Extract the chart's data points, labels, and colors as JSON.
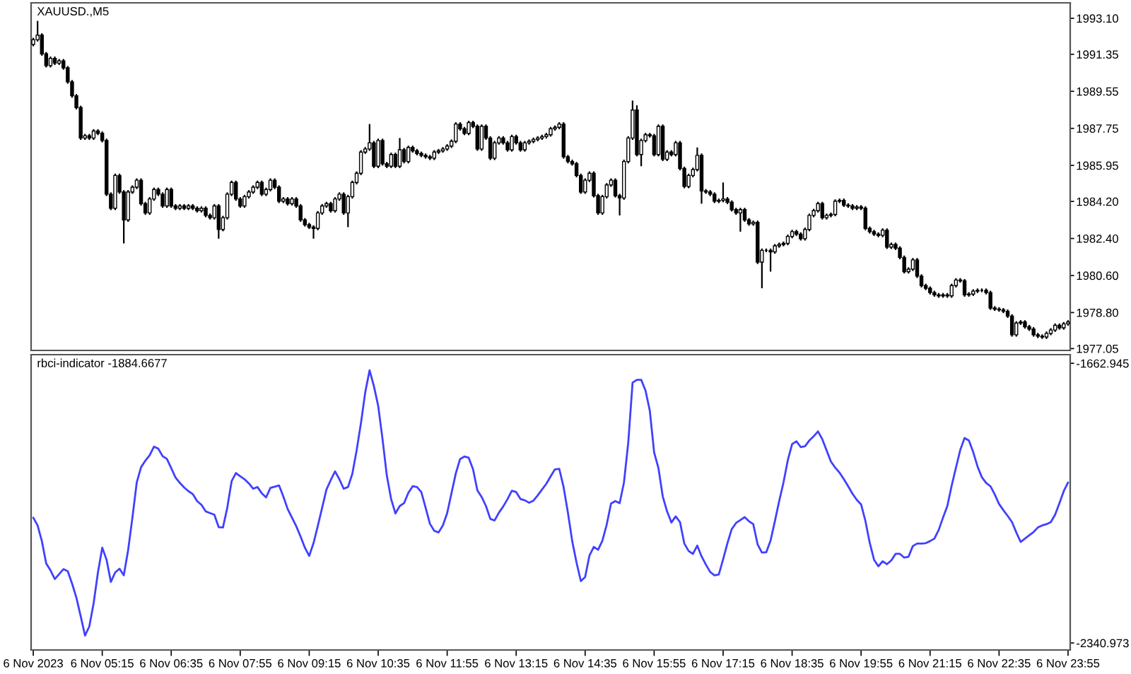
{
  "chart_data": [
    {
      "type": "candlestick",
      "title": "XAUUSD.,M5",
      "categories": [
        null,
        null,
        null,
        null,
        null,
        null,
        null,
        null,
        null,
        null,
        null,
        null,
        null,
        null,
        null,
        null,
        null,
        null,
        null,
        null,
        null,
        null,
        null,
        null,
        null,
        null,
        null,
        null,
        null,
        null,
        null,
        null,
        null,
        null,
        null,
        null,
        null,
        null,
        null,
        null,
        null,
        null,
        null,
        null,
        null,
        null,
        null,
        null,
        null,
        null,
        null,
        null,
        null,
        null,
        null,
        null,
        null,
        null,
        null,
        null,
        null,
        null,
        null,
        null,
        null,
        null,
        null,
        null,
        null,
        null,
        null,
        null,
        null,
        null,
        null,
        null,
        null,
        null,
        null,
        null,
        null,
        null,
        null,
        null,
        null,
        null,
        null,
        null,
        null,
        null,
        null,
        null,
        null,
        null,
        null,
        null,
        null,
        null,
        null,
        null,
        null,
        null,
        null,
        null,
        null,
        null,
        null,
        null,
        null,
        null,
        null,
        null,
        null,
        null,
        null,
        null,
        null,
        null,
        null,
        null,
        null,
        null,
        null,
        null,
        null,
        null,
        null,
        null,
        null,
        null,
        null,
        null,
        null,
        null,
        null,
        null,
        null,
        null,
        null,
        null,
        null,
        null,
        null,
        null,
        null,
        null,
        null,
        null,
        null,
        null,
        null,
        null,
        null,
        null,
        null,
        null,
        null,
        null,
        null,
        null,
        null,
        null,
        null,
        null,
        null,
        null,
        null,
        null,
        null,
        null,
        null,
        null,
        null,
        null,
        null,
        null,
        null,
        null,
        null,
        null,
        null,
        null,
        null,
        null,
        null,
        null,
        null,
        null,
        null,
        null,
        null,
        null,
        null,
        null,
        null,
        null,
        null,
        null,
        null,
        null,
        null,
        null,
        null,
        null,
        null,
        null,
        null,
        null,
        null,
        null,
        null,
        null,
        null,
        null,
        null,
        null,
        null,
        null,
        null,
        null,
        null,
        null,
        null,
        null,
        null,
        null,
        null,
        null,
        null,
        null,
        null,
        null,
        null,
        null,
        null,
        null,
        null,
        null,
        null,
        null,
        null
      ],
      "ohlc": [
        [
          1991.83,
          1992.15,
          1991.74,
          1992.06
        ],
        [
          1992.06,
          1992.97,
          1991.97,
          1992.28
        ],
        [
          1992.28,
          1992.37,
          1991.28,
          1991.37
        ],
        [
          1991.37,
          1991.46,
          1990.71,
          1990.8
        ],
        [
          1990.8,
          1991.24,
          1990.71,
          1991.15
        ],
        [
          1991.15,
          1991.24,
          1990.83,
          1990.92
        ],
        [
          1990.92,
          1991.12,
          1990.83,
          1991.03
        ],
        [
          1991.03,
          1991.12,
          1990.6,
          1990.69
        ],
        [
          1990.69,
          1990.78,
          1989.92,
          1990.01
        ],
        [
          1990.01,
          1990.1,
          1989.24,
          1989.33
        ],
        [
          1989.33,
          1989.42,
          1988.67,
          1988.76
        ],
        [
          1988.76,
          1988.85,
          1987.19,
          1987.28
        ],
        [
          1987.28,
          1987.48,
          1987.19,
          1987.39
        ],
        [
          1987.39,
          1987.48,
          1987.19,
          1987.28
        ],
        [
          1987.28,
          1987.71,
          1987.19,
          1987.62
        ],
        [
          1987.62,
          1987.71,
          1987.42,
          1987.51
        ],
        [
          1987.51,
          1987.6,
          1987.07,
          1987.16
        ],
        [
          1987.16,
          1987.25,
          1984.46,
          1984.55
        ],
        [
          1984.55,
          1984.64,
          1983.78,
          1983.87
        ],
        [
          1983.87,
          1985.55,
          1983.78,
          1985.46
        ],
        [
          1985.46,
          1985.55,
          1984.57,
          1984.66
        ],
        [
          1984.66,
          1984.75,
          1982.16,
          1983.3
        ],
        [
          1983.3,
          1984.75,
          1983.21,
          1984.66
        ],
        [
          1984.66,
          1984.98,
          1984.57,
          1984.89
        ],
        [
          1984.89,
          1985.32,
          1984.8,
          1985.23
        ],
        [
          1985.23,
          1985.32,
          1984.0,
          1984.09
        ],
        [
          1984.09,
          1984.18,
          1983.55,
          1983.64
        ],
        [
          1983.64,
          1984.41,
          1983.55,
          1984.32
        ],
        [
          1984.32,
          1984.87,
          1984.23,
          1984.78
        ],
        [
          1984.78,
          1984.87,
          1984.46,
          1984.55
        ],
        [
          1984.55,
          1984.64,
          1983.89,
          1983.98
        ],
        [
          1983.98,
          1984.87,
          1983.89,
          1984.78
        ],
        [
          1984.78,
          1984.87,
          1983.89,
          1983.98
        ],
        [
          1983.98,
          1984.07,
          1983.78,
          1983.87
        ],
        [
          1983.87,
          1984.07,
          1983.78,
          1983.98
        ],
        [
          1983.98,
          1984.07,
          1983.78,
          1983.87
        ],
        [
          1983.87,
          1984.07,
          1983.78,
          1983.98
        ],
        [
          1983.98,
          1984.07,
          1983.78,
          1983.87
        ],
        [
          1983.87,
          1983.96,
          1983.66,
          1983.75
        ],
        [
          1983.75,
          1983.96,
          1983.66,
          1983.87
        ],
        [
          1983.87,
          1983.96,
          1983.43,
          1983.52
        ],
        [
          1983.52,
          1983.61,
          1983.32,
          1983.41
        ],
        [
          1983.41,
          1984.07,
          1983.32,
          1983.98
        ],
        [
          1983.98,
          1984.07,
          1982.39,
          1982.84
        ],
        [
          1982.84,
          1983.5,
          1982.75,
          1983.41
        ],
        [
          1983.41,
          1984.64,
          1983.32,
          1984.55
        ],
        [
          1984.55,
          1985.21,
          1984.46,
          1985.12
        ],
        [
          1985.12,
          1985.21,
          1984.23,
          1984.32
        ],
        [
          1984.32,
          1984.41,
          1983.89,
          1983.98
        ],
        [
          1983.98,
          1984.52,
          1983.89,
          1984.43
        ],
        [
          1984.43,
          1984.75,
          1984.34,
          1984.66
        ],
        [
          1984.66,
          1984.98,
          1984.57,
          1984.89
        ],
        [
          1984.89,
          1985.21,
          1984.8,
          1985.12
        ],
        [
          1985.12,
          1985.21,
          1984.46,
          1984.55
        ],
        [
          1984.55,
          1984.87,
          1984.46,
          1984.78
        ],
        [
          1984.78,
          1985.32,
          1984.69,
          1985.23
        ],
        [
          1985.23,
          1985.32,
          1984.8,
          1984.89
        ],
        [
          1984.89,
          1984.98,
          1984.12,
          1984.21
        ],
        [
          1984.21,
          1984.41,
          1984.12,
          1984.32
        ],
        [
          1984.32,
          1984.41,
          1984.0,
          1984.09
        ],
        [
          1984.09,
          1984.41,
          1984.0,
          1984.32
        ],
        [
          1984.32,
          1984.41,
          1983.89,
          1983.98
        ],
        [
          1983.98,
          1984.07,
          1983.21,
          1983.3
        ],
        [
          1983.3,
          1983.39,
          1982.98,
          1983.07
        ],
        [
          1983.07,
          1983.16,
          1982.86,
          1982.95
        ],
        [
          1982.95,
          1983.04,
          1982.39,
          1982.89
        ],
        [
          1982.89,
          1983.73,
          1982.8,
          1983.64
        ],
        [
          1983.64,
          1984.07,
          1983.55,
          1983.98
        ],
        [
          1983.98,
          1984.18,
          1983.89,
          1984.09
        ],
        [
          1984.09,
          1984.18,
          1983.66,
          1983.75
        ],
        [
          1983.75,
          1984.41,
          1983.66,
          1984.32
        ],
        [
          1984.32,
          1984.64,
          1984.23,
          1984.55
        ],
        [
          1984.55,
          1984.64,
          1983.55,
          1983.64
        ],
        [
          1983.64,
          1984.52,
          1982.95,
          1984.43
        ],
        [
          1984.43,
          1985.21,
          1984.34,
          1985.12
        ],
        [
          1985.12,
          1985.66,
          1985.03,
          1985.57
        ],
        [
          1985.57,
          1986.69,
          1985.48,
          1986.6
        ],
        [
          1986.6,
          1986.84,
          1986.51,
          1986.75
        ],
        [
          1986.75,
          1987.96,
          1986.66,
          1987.05
        ],
        [
          1987.05,
          1987.14,
          1985.82,
          1985.91
        ],
        [
          1985.91,
          1987.25,
          1985.82,
          1987.16
        ],
        [
          1987.16,
          1987.25,
          1985.94,
          1986.03
        ],
        [
          1986.03,
          1986.12,
          1985.82,
          1985.91
        ],
        [
          1985.91,
          1986.57,
          1985.82,
          1986.48
        ],
        [
          1986.48,
          1986.57,
          1985.82,
          1985.91
        ],
        [
          1985.91,
          1987.28,
          1985.82,
          1986.71
        ],
        [
          1986.71,
          1986.8,
          1986.05,
          1986.14
        ],
        [
          1986.14,
          1986.91,
          1986.05,
          1986.82
        ],
        [
          1986.82,
          1986.91,
          1986.57,
          1986.66
        ],
        [
          1986.66,
          1986.75,
          1986.44,
          1986.53
        ],
        [
          1986.53,
          1986.62,
          1986.35,
          1986.44
        ],
        [
          1986.44,
          1986.53,
          1986.28,
          1986.37
        ],
        [
          1986.37,
          1986.46,
          1986.21,
          1986.3
        ],
        [
          1986.3,
          1986.69,
          1986.21,
          1986.6
        ],
        [
          1986.6,
          1986.75,
          1986.51,
          1986.66
        ],
        [
          1986.66,
          1986.84,
          1986.57,
          1986.75
        ],
        [
          1986.75,
          1986.98,
          1986.66,
          1986.89
        ],
        [
          1986.89,
          1987.21,
          1986.8,
          1987.12
        ],
        [
          1987.12,
          1988.05,
          1987.03,
          1987.96
        ],
        [
          1987.96,
          1988.05,
          1987.64,
          1987.73
        ],
        [
          1987.73,
          1987.82,
          1987.42,
          1987.51
        ],
        [
          1987.51,
          1988.12,
          1987.42,
          1988.03
        ],
        [
          1988.03,
          1988.12,
          1987.76,
          1987.85
        ],
        [
          1987.85,
          1987.94,
          1986.66,
          1986.75
        ],
        [
          1986.75,
          1987.94,
          1986.66,
          1987.85
        ],
        [
          1987.85,
          1987.94,
          1987.19,
          1987.28
        ],
        [
          1987.28,
          1987.37,
          1986.21,
          1986.3
        ],
        [
          1986.3,
          1987.14,
          1986.21,
          1987.05
        ],
        [
          1987.05,
          1987.37,
          1986.96,
          1987.28
        ],
        [
          1987.28,
          1987.37,
          1986.96,
          1987.05
        ],
        [
          1987.05,
          1987.14,
          1986.62,
          1986.71
        ],
        [
          1986.71,
          1987.44,
          1986.62,
          1987.35
        ],
        [
          1987.35,
          1987.44,
          1986.96,
          1987.05
        ],
        [
          1987.05,
          1987.14,
          1986.62,
          1986.71
        ],
        [
          1986.71,
          1987.14,
          1986.62,
          1987.05
        ],
        [
          1987.05,
          1987.21,
          1986.96,
          1987.12
        ],
        [
          1987.12,
          1987.3,
          1987.03,
          1987.21
        ],
        [
          1987.21,
          1987.37,
          1987.12,
          1987.28
        ],
        [
          1987.28,
          1987.44,
          1987.19,
          1987.35
        ],
        [
          1987.35,
          1987.53,
          1987.26,
          1987.44
        ],
        [
          1987.44,
          1987.82,
          1987.35,
          1987.73
        ],
        [
          1987.73,
          1987.89,
          1987.64,
          1987.8
        ],
        [
          1987.8,
          1988.05,
          1987.71,
          1987.96
        ],
        [
          1987.96,
          1988.05,
          1986.28,
          1986.37
        ],
        [
          1986.37,
          1986.46,
          1986.05,
          1986.14
        ],
        [
          1986.14,
          1986.23,
          1985.94,
          1986.03
        ],
        [
          1986.03,
          1986.12,
          1985.37,
          1985.46
        ],
        [
          1985.46,
          1985.55,
          1984.57,
          1984.66
        ],
        [
          1984.66,
          1985.32,
          1984.57,
          1985.23
        ],
        [
          1985.23,
          1985.66,
          1985.14,
          1985.57
        ],
        [
          1985.57,
          1985.66,
          1984.39,
          1984.48
        ],
        [
          1984.48,
          1984.57,
          1983.55,
          1983.64
        ],
        [
          1983.64,
          1984.52,
          1983.55,
          1984.43
        ],
        [
          1984.43,
          1985.09,
          1984.34,
          1985.0
        ],
        [
          1985.0,
          1985.32,
          1984.91,
          1985.23
        ],
        [
          1985.23,
          1985.32,
          1984.39,
          1984.48
        ],
        [
          1984.48,
          1984.57,
          1983.52,
          1984.37
        ],
        [
          1984.37,
          1986.23,
          1984.28,
          1986.14
        ],
        [
          1986.14,
          1987.37,
          1986.05,
          1987.28
        ],
        [
          1987.28,
          1989.1,
          1987.19,
          1988.64
        ],
        [
          1988.64,
          1988.87,
          1986.39,
          1986.48
        ],
        [
          1986.48,
          1987.25,
          1985.91,
          1987.16
        ],
        [
          1987.16,
          1987.53,
          1987.07,
          1987.44
        ],
        [
          1987.44,
          1987.53,
          1987.3,
          1987.39
        ],
        [
          1987.39,
          1987.48,
          1986.39,
          1986.48
        ],
        [
          1986.48,
          1987.94,
          1986.39,
          1987.85
        ],
        [
          1987.85,
          1987.94,
          1986.16,
          1986.25
        ],
        [
          1986.25,
          1986.69,
          1986.16,
          1986.6
        ],
        [
          1986.6,
          1986.69,
          1986.39,
          1986.48
        ],
        [
          1986.48,
          1987.14,
          1986.39,
          1987.05
        ],
        [
          1987.05,
          1987.14,
          1985.71,
          1985.8
        ],
        [
          1985.8,
          1985.89,
          1984.84,
          1984.93
        ],
        [
          1984.93,
          1985.55,
          1984.84,
          1985.46
        ],
        [
          1985.46,
          1985.84,
          1985.37,
          1985.75
        ],
        [
          1985.75,
          1986.82,
          1985.66,
          1986.44
        ],
        [
          1986.44,
          1986.53,
          1984.09,
          1984.71
        ],
        [
          1984.71,
          1984.8,
          1984.57,
          1984.66
        ],
        [
          1984.66,
          1984.75,
          1984.46,
          1984.55
        ],
        [
          1984.55,
          1984.64,
          1984.12,
          1984.21
        ],
        [
          1984.21,
          1984.34,
          1984.12,
          1984.25
        ],
        [
          1984.25,
          1985.12,
          1984.16,
          1984.32
        ],
        [
          1984.32,
          1984.41,
          1984.07,
          1984.16
        ],
        [
          1984.16,
          1984.25,
          1983.71,
          1983.8
        ],
        [
          1983.8,
          1983.89,
          1983.55,
          1983.64
        ],
        [
          1983.64,
          1983.89,
          1982.73,
          1983.8
        ],
        [
          1983.8,
          1983.89,
          1983.21,
          1983.3
        ],
        [
          1983.3,
          1983.39,
          1983.02,
          1983.11
        ],
        [
          1983.11,
          1983.27,
          1983.02,
          1983.18
        ],
        [
          1983.18,
          1983.27,
          1981.16,
          1981.25
        ],
        [
          1981.25,
          1981.91,
          1979.98,
          1981.82
        ],
        [
          1981.82,
          1981.91,
          1981.73,
          1981.82
        ],
        [
          1981.82,
          1981.91,
          1980.79,
          1981.75
        ],
        [
          1981.75,
          1982.13,
          1981.66,
          1982.04
        ],
        [
          1982.04,
          1982.2,
          1981.95,
          1982.11
        ],
        [
          1982.11,
          1982.25,
          1982.02,
          1982.16
        ],
        [
          1982.16,
          1982.59,
          1982.07,
          1982.5
        ],
        [
          1982.5,
          1982.82,
          1982.41,
          1982.73
        ],
        [
          1982.73,
          1982.82,
          1982.52,
          1982.61
        ],
        [
          1982.61,
          1982.7,
          1982.3,
          1982.39
        ],
        [
          1982.39,
          1982.93,
          1982.3,
          1982.84
        ],
        [
          1982.84,
          1983.61,
          1982.75,
          1983.52
        ],
        [
          1983.52,
          1983.84,
          1983.43,
          1983.75
        ],
        [
          1983.75,
          1984.18,
          1983.66,
          1984.09
        ],
        [
          1984.09,
          1984.18,
          1983.32,
          1983.41
        ],
        [
          1983.41,
          1983.61,
          1983.32,
          1983.52
        ],
        [
          1983.52,
          1983.66,
          1983.43,
          1983.57
        ],
        [
          1983.57,
          1984.3,
          1983.48,
          1984.21
        ],
        [
          1984.21,
          1984.34,
          1984.12,
          1984.25
        ],
        [
          1984.25,
          1984.34,
          1983.93,
          1984.02
        ],
        [
          1984.02,
          1984.11,
          1983.89,
          1983.98
        ],
        [
          1983.98,
          1984.07,
          1983.78,
          1983.87
        ],
        [
          1983.87,
          1984.02,
          1983.78,
          1983.93
        ],
        [
          1983.93,
          1984.02,
          1983.78,
          1983.87
        ],
        [
          1983.87,
          1983.96,
          1982.8,
          1982.89
        ],
        [
          1982.89,
          1982.98,
          1982.64,
          1982.73
        ],
        [
          1982.73,
          1982.82,
          1982.52,
          1982.61
        ],
        [
          1982.61,
          1982.7,
          1982.46,
          1982.55
        ],
        [
          1982.55,
          1982.89,
          1982.46,
          1982.8
        ],
        [
          1982.8,
          1982.89,
          1981.89,
          1981.98
        ],
        [
          1981.98,
          1982.2,
          1981.89,
          1982.11
        ],
        [
          1982.11,
          1982.2,
          1981.84,
          1981.93
        ],
        [
          1981.93,
          1982.02,
          1981.39,
          1981.48
        ],
        [
          1981.48,
          1981.57,
          1980.7,
          1980.79
        ],
        [
          1980.79,
          1981.0,
          1980.7,
          1980.91
        ],
        [
          1980.91,
          1981.45,
          1980.82,
          1981.36
        ],
        [
          1981.36,
          1981.45,
          1980.48,
          1980.57
        ],
        [
          1980.57,
          1980.66,
          1980.02,
          1980.11
        ],
        [
          1980.11,
          1980.2,
          1979.89,
          1979.98
        ],
        [
          1979.98,
          1980.07,
          1979.68,
          1979.77
        ],
        [
          1979.77,
          1979.86,
          1979.57,
          1979.66
        ],
        [
          1979.66,
          1979.75,
          1979.52,
          1979.61
        ],
        [
          1979.61,
          1979.75,
          1979.52,
          1979.66
        ],
        [
          1979.66,
          1979.75,
          1979.52,
          1979.61
        ],
        [
          1979.61,
          1980.2,
          1979.52,
          1980.11
        ],
        [
          1980.11,
          1980.47,
          1980.02,
          1980.38
        ],
        [
          1980.38,
          1980.47,
          1980.25,
          1980.34
        ],
        [
          1980.34,
          1980.43,
          1979.57,
          1979.66
        ],
        [
          1979.66,
          1979.79,
          1979.57,
          1979.7
        ],
        [
          1979.7,
          1979.93,
          1979.61,
          1979.84
        ],
        [
          1979.84,
          1979.97,
          1979.75,
          1979.88
        ],
        [
          1979.88,
          1979.97,
          1979.79,
          1979.88
        ],
        [
          1979.88,
          1979.97,
          1979.68,
          1979.77
        ],
        [
          1979.77,
          1979.86,
          1978.93,
          1979.02
        ],
        [
          1979.02,
          1979.11,
          1978.88,
          1978.97
        ],
        [
          1978.97,
          1979.06,
          1978.84,
          1978.93
        ],
        [
          1978.93,
          1979.02,
          1978.77,
          1978.86
        ],
        [
          1978.86,
          1978.95,
          1978.54,
          1978.63
        ],
        [
          1978.63,
          1978.72,
          1977.63,
          1977.72
        ],
        [
          1977.72,
          1978.38,
          1977.63,
          1978.29
        ],
        [
          1978.29,
          1978.43,
          1978.2,
          1978.34
        ],
        [
          1978.34,
          1978.43,
          1978.02,
          1978.11
        ],
        [
          1978.11,
          1978.2,
          1977.91,
          1978.0
        ],
        [
          1978.0,
          1978.09,
          1977.63,
          1977.72
        ],
        [
          1977.72,
          1977.81,
          1977.56,
          1977.65
        ],
        [
          1977.65,
          1977.74,
          1977.52,
          1977.61
        ],
        [
          1977.61,
          1977.88,
          1977.52,
          1977.79
        ],
        [
          1977.79,
          1978.04,
          1977.7,
          1977.95
        ],
        [
          1977.95,
          1978.27,
          1977.86,
          1978.18
        ],
        [
          1978.18,
          1978.27,
          1977.97,
          1978.06
        ],
        [
          1978.06,
          1978.34,
          1977.97,
          1978.25
        ],
        [
          1978.25,
          1978.43,
          1978.16,
          1978.34
        ]
      ],
      "ylim": [
        1976.96,
        1993.85
      ],
      "yticks": [
        {
          "value": 1993.1,
          "label": "1993.10"
        },
        1991.35,
        1989.55,
        1987.75,
        1985.95,
        {
          "value": 1984.2,
          "label": "1984.20"
        },
        {
          "value": 1982.4,
          "label": "1982.40"
        },
        {
          "value": 1980.6,
          "label": "1980.60"
        },
        {
          "value": 1978.8,
          "label": "1978.80"
        },
        1977.05
      ]
    },
    {
      "type": "line",
      "title": "rbci-indicator -1884.6677",
      "categories": [
        "6 Nov 2023",
        null,
        null,
        null,
        null,
        null,
        null,
        null,
        null,
        null,
        null,
        null,
        null,
        null,
        null,
        null,
        "6 Nov 05:15",
        null,
        null,
        null,
        null,
        null,
        null,
        null,
        null,
        null,
        null,
        null,
        null,
        null,
        null,
        null,
        "6 Nov 06:35",
        null,
        null,
        null,
        null,
        null,
        null,
        null,
        null,
        null,
        null,
        null,
        null,
        null,
        null,
        null,
        "6 Nov 07:55",
        null,
        null,
        null,
        null,
        null,
        null,
        null,
        null,
        null,
        null,
        null,
        null,
        null,
        null,
        null,
        "6 Nov 09:15",
        null,
        null,
        null,
        null,
        null,
        null,
        null,
        null,
        null,
        null,
        null,
        null,
        null,
        null,
        null,
        "6 Nov 10:35",
        null,
        null,
        null,
        null,
        null,
        null,
        null,
        null,
        null,
        null,
        null,
        null,
        null,
        null,
        null,
        "6 Nov 11:55",
        null,
        null,
        null,
        null,
        null,
        null,
        null,
        null,
        null,
        null,
        null,
        null,
        null,
        null,
        null,
        "6 Nov 13:15",
        null,
        null,
        null,
        null,
        null,
        null,
        null,
        null,
        null,
        null,
        null,
        null,
        null,
        null,
        null,
        "6 Nov 14:35",
        null,
        null,
        null,
        null,
        null,
        null,
        null,
        null,
        null,
        null,
        null,
        null,
        null,
        null,
        null,
        "6 Nov 15:55",
        null,
        null,
        null,
        null,
        null,
        null,
        null,
        null,
        null,
        null,
        null,
        null,
        null,
        null,
        null,
        "6 Nov 17:15",
        null,
        null,
        null,
        null,
        null,
        null,
        null,
        null,
        null,
        null,
        null,
        null,
        null,
        null,
        null,
        "6 Nov 18:35",
        null,
        null,
        null,
        null,
        null,
        null,
        null,
        null,
        null,
        null,
        null,
        null,
        null,
        null,
        null,
        "6 Nov 19:55",
        null,
        null,
        null,
        null,
        null,
        null,
        null,
        null,
        null,
        null,
        null,
        null,
        null,
        null,
        null,
        "6 Nov 21:15",
        null,
        null,
        null,
        null,
        null,
        null,
        null,
        null,
        null,
        null,
        null,
        null,
        null,
        null,
        null,
        "6 Nov 22:35",
        null,
        null,
        null,
        null,
        null,
        null,
        null,
        null,
        null,
        null,
        null,
        null,
        null,
        null,
        null,
        "6 Nov 23:55"
      ],
      "series": [
        {
          "color": "#4040ff",
          "values": [
            -2037,
            -2056,
            -2094,
            -2148,
            -2165,
            -2186,
            -2174,
            -2162,
            -2167,
            -2197,
            -2231,
            -2276,
            -2323,
            -2301,
            -2245,
            -2170,
            -2110,
            -2139,
            -2193,
            -2170,
            -2161,
            -2177,
            -2116,
            -2037,
            -1952,
            -1915,
            -1899,
            -1886,
            -1865,
            -1870,
            -1888,
            -1895,
            -1917,
            -1940,
            -1953,
            -1964,
            -1973,
            -1980,
            -1997,
            -2006,
            -2022,
            -2026,
            -2030,
            -2060,
            -2061,
            -2013,
            -1949,
            -1929,
            -1937,
            -1944,
            -1954,
            -1967,
            -1963,
            -1978,
            -1988,
            -1965,
            -1962,
            -1959,
            -1986,
            -2016,
            -2037,
            -2058,
            -2083,
            -2110,
            -2130,
            -2099,
            -2057,
            -2013,
            -1969,
            -1946,
            -1925,
            -1944,
            -1967,
            -1963,
            -1931,
            -1874,
            -1808,
            -1733,
            -1680,
            -1718,
            -1766,
            -1846,
            -1935,
            -1992,
            -2027,
            -2009,
            -2002,
            -1977,
            -1961,
            -1963,
            -1975,
            -2013,
            -2052,
            -2069,
            -2073,
            -2056,
            -2026,
            -1978,
            -1930,
            -1895,
            -1889,
            -1892,
            -1920,
            -1971,
            -1987,
            -2009,
            -2040,
            -2044,
            -2025,
            -2010,
            -1992,
            -1972,
            -1975,
            -1992,
            -1995,
            -2001,
            -1996,
            -1983,
            -1969,
            -1955,
            -1937,
            -1920,
            -1919,
            -1963,
            -2025,
            -2094,
            -2146,
            -2191,
            -2181,
            -2129,
            -2108,
            -2115,
            -2093,
            -2054,
            -2003,
            -1997,
            -2002,
            -1952,
            -1855,
            -1710,
            -1703,
            -1703,
            -1729,
            -1778,
            -1879,
            -1917,
            -1986,
            -2022,
            -2049,
            -2034,
            -2048,
            -2100,
            -2118,
            -2125,
            -2105,
            -2131,
            -2151,
            -2169,
            -2177,
            -2175,
            -2138,
            -2099,
            -2065,
            -2050,
            -2043,
            -2036,
            -2046,
            -2053,
            -2102,
            -2122,
            -2121,
            -2093,
            -2046,
            -1997,
            -1952,
            -1898,
            -1859,
            -1852,
            -1866,
            -1864,
            -1850,
            -1840,
            -1828,
            -1847,
            -1874,
            -1901,
            -1916,
            -1928,
            -1944,
            -1961,
            -1979,
            -1994,
            -2005,
            -2045,
            -2098,
            -2139,
            -2155,
            -2143,
            -2150,
            -2141,
            -2125,
            -2125,
            -2134,
            -2132,
            -2106,
            -2100,
            -2100,
            -2099,
            -2094,
            -2088,
            -2067,
            -2037,
            -2009,
            -1960,
            -1916,
            -1873,
            -1844,
            -1850,
            -1878,
            -1913,
            -1939,
            -1953,
            -1961,
            -1981,
            -2004,
            -2019,
            -2033,
            -2048,
            -2073,
            -2096,
            -2088,
            -2080,
            -2072,
            -2061,
            -2056,
            -2053,
            -2048,
            -2030,
            -2002,
            -1973,
            -1952
          ]
        }
      ],
      "ylim": [
        -2358,
        -1642
      ],
      "yticks": [
        -1662.945,
        -2340.973
      ]
    }
  ]
}
